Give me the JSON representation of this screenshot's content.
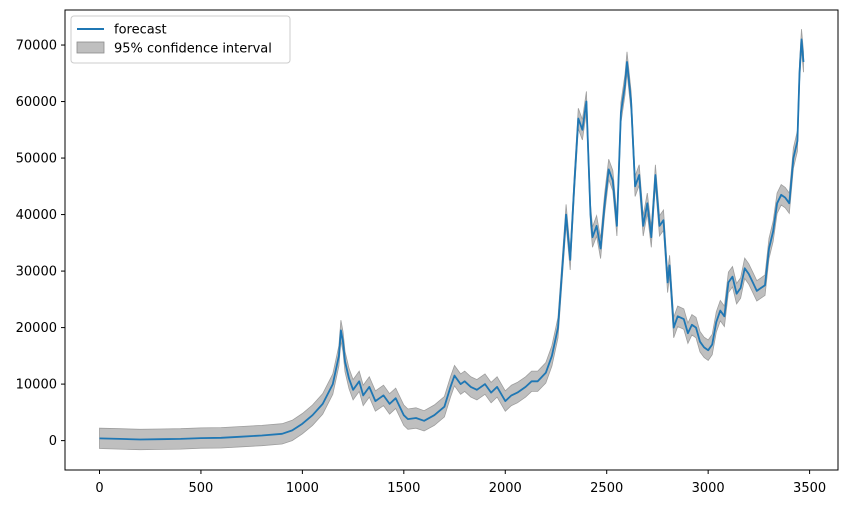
{
  "chart_data": {
    "type": "line",
    "title": "",
    "xlabel": "",
    "ylabel": "",
    "xlim": [
      -170,
      3640
    ],
    "ylim": [
      -5200,
      76200
    ],
    "xticks": [
      0,
      500,
      1000,
      1500,
      2000,
      2500,
      3000,
      3500
    ],
    "yticks": [
      0,
      10000,
      20000,
      30000,
      40000,
      50000,
      60000,
      70000
    ],
    "grid": false,
    "legend_position": "top-left",
    "series": [
      {
        "name": "forecast",
        "color": "#1f77b4",
        "x": [
          0,
          100,
          200,
          300,
          400,
          500,
          600,
          700,
          800,
          900,
          950,
          1000,
          1050,
          1100,
          1150,
          1180,
          1190,
          1200,
          1210,
          1230,
          1250,
          1280,
          1300,
          1330,
          1360,
          1400,
          1430,
          1460,
          1500,
          1520,
          1560,
          1600,
          1650,
          1700,
          1730,
          1750,
          1780,
          1800,
          1830,
          1860,
          1900,
          1930,
          1960,
          2000,
          2030,
          2060,
          2100,
          2130,
          2160,
          2200,
          2230,
          2260,
          2290,
          2300,
          2320,
          2340,
          2360,
          2380,
          2400,
          2420,
          2430,
          2450,
          2470,
          2490,
          2510,
          2530,
          2550,
          2570,
          2590,
          2600,
          2620,
          2640,
          2660,
          2680,
          2700,
          2720,
          2740,
          2760,
          2780,
          2800,
          2810,
          2830,
          2850,
          2880,
          2900,
          2920,
          2940,
          2960,
          2980,
          3000,
          3020,
          3040,
          3060,
          3080,
          3100,
          3120,
          3140,
          3160,
          3180,
          3200,
          3220,
          3240,
          3260,
          3280,
          3300,
          3320,
          3340,
          3360,
          3380,
          3400,
          3420,
          3440,
          3450,
          3460,
          3470
        ],
        "values": [
          400,
          300,
          200,
          250,
          300,
          450,
          500,
          700,
          900,
          1200,
          1800,
          3000,
          4500,
          6500,
          10000,
          15000,
          19500,
          17500,
          14000,
          11000,
          9000,
          10500,
          8000,
          9500,
          7000,
          8000,
          6500,
          7500,
          4500,
          3800,
          4000,
          3500,
          4500,
          6000,
          9500,
          11500,
          10000,
          10500,
          9500,
          9000,
          10000,
          8500,
          9500,
          7000,
          8000,
          8500,
          9500,
          10500,
          10500,
          12000,
          15000,
          20000,
          35000,
          40000,
          32000,
          45000,
          57000,
          55000,
          60000,
          40000,
          36000,
          38000,
          34000,
          42000,
          48000,
          46000,
          38000,
          58000,
          63000,
          67000,
          60000,
          45000,
          47000,
          38000,
          42000,
          36000,
          47000,
          38000,
          39000,
          28000,
          31000,
          20000,
          22000,
          21500,
          19000,
          20500,
          20000,
          17500,
          16500,
          16000,
          17000,
          21000,
          23000,
          22000,
          28000,
          29000,
          26000,
          27000,
          30500,
          29500,
          28000,
          26500,
          27000,
          27500,
          34000,
          37000,
          42000,
          43500,
          43000,
          42000,
          50000,
          53000,
          65000,
          71000,
          67000
        ]
      }
    ],
    "band": {
      "name": "95% confidence interval",
      "color": "#bfbfbf",
      "half_width": 1800
    }
  }
}
